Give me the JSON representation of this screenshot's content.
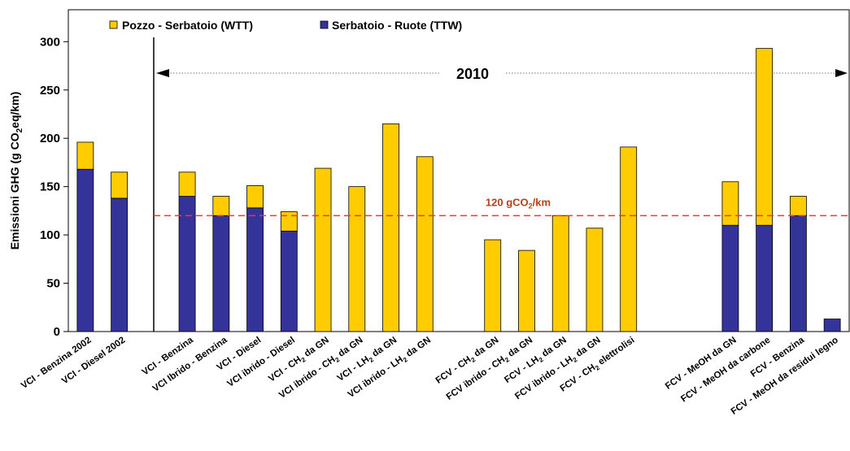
{
  "chart_data": {
    "type": "bar",
    "stacked": true,
    "ylabel": "Emissioni GHG (g CO",
    "ylabel_sub": "2",
    "ylabel_tail": "eq/km)",
    "ylim": [
      0,
      300
    ],
    "yticks": [
      0,
      50,
      100,
      150,
      200,
      250,
      300
    ],
    "grid": false,
    "legend_position": "top-left",
    "colors": {
      "wtt": "#FFCC00",
      "ttw": "#333399",
      "reference": "#FF3333",
      "reference_text": "#B5401B"
    },
    "categories": [
      {
        "main": "VCI - Benzina 2002"
      },
      {
        "main": "VCI - Diesel 2002"
      },
      {
        "main": ""
      },
      {
        "main": "VCI - Benzina"
      },
      {
        "main": "VCI Ibrido - Benzina"
      },
      {
        "main": "VCI - Diesel"
      },
      {
        "main": "VCI ibrido - Diesel"
      },
      {
        "main": "VCI - CH",
        "sub": "2",
        "tail": " da GN"
      },
      {
        "main": "VCI ibrido - CH",
        "sub": "2",
        "tail": " da GN"
      },
      {
        "main": "VCI - LH",
        "sub": "2",
        "tail": " da GN"
      },
      {
        "main": "VCI ibrido - LH",
        "sub": "2",
        "tail": " da GN"
      },
      {
        "main": ""
      },
      {
        "main": "FCV - CH",
        "sub": "2",
        "tail": " da GN"
      },
      {
        "main": "FCV ibrido - CH",
        "sub": "2",
        "tail": " da GN"
      },
      {
        "main": "FCV - LH",
        "sub": "2",
        "tail": " da GN"
      },
      {
        "main": "FCV ibrido - LH",
        "sub": "2",
        "tail": " da GN"
      },
      {
        "main": "FCV - CH",
        "sub": "2",
        "tail": " elettrolisi"
      },
      {
        "main": ""
      },
      {
        "main": ""
      },
      {
        "main": "FCV - MeOH da GN"
      },
      {
        "main": "FCV - MeOH da carbone"
      },
      {
        "main": "FCV - Benzina"
      },
      {
        "main": "FCV - MeOH da residui legno"
      }
    ],
    "series": [
      {
        "name": "Serbatoio - Ruote (TTW)",
        "key": "ttw",
        "values": [
          168,
          138,
          null,
          140,
          120,
          128,
          104,
          0,
          0,
          0,
          0,
          null,
          0,
          0,
          0,
          0,
          0,
          null,
          null,
          110,
          110,
          120,
          13
        ]
      },
      {
        "name": "Pozzo - Serbatoio (WTT)",
        "key": "wtt",
        "values": [
          28,
          27,
          null,
          25,
          20,
          23,
          20,
          169,
          150,
          215,
          181,
          null,
          95,
          84,
          120,
          107,
          191,
          null,
          null,
          45,
          183,
          20,
          0
        ]
      }
    ],
    "reference_line": {
      "value": 120,
      "label": "120 gCO",
      "label_sub": "2",
      "label_tail": "/km"
    },
    "period_annotation": {
      "label": "2010",
      "from_category": 3
    }
  }
}
